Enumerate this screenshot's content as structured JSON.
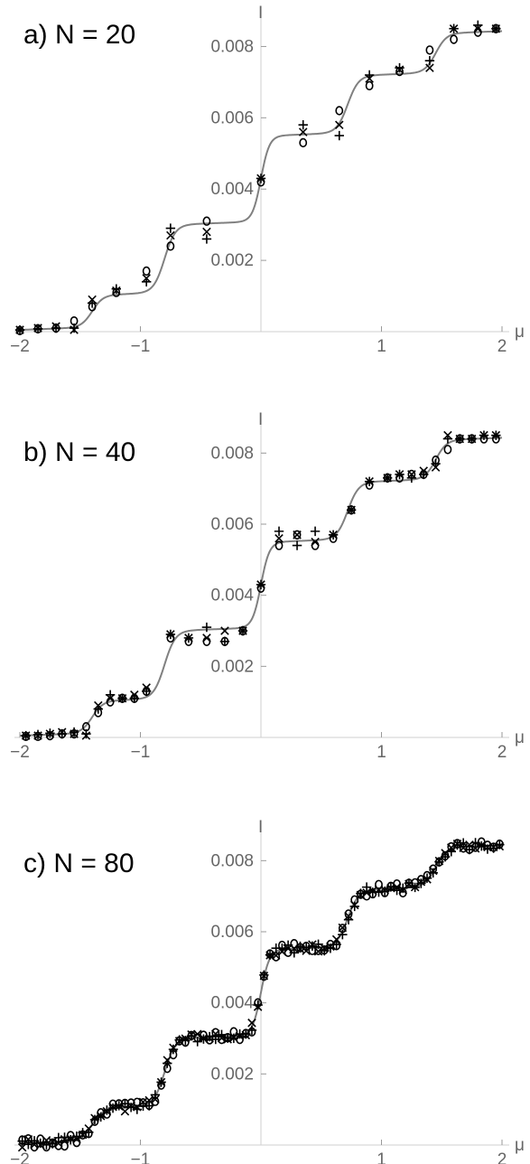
{
  "chart_data": [
    {
      "type": "line",
      "panel_label": "a) N = 20",
      "xlabel": "μ",
      "ylabel": "I",
      "xlim": [
        -2,
        2
      ],
      "ylim": [
        0,
        0.009
      ],
      "x_ticks": [
        "-2",
        "-1",
        "1",
        "2"
      ],
      "y_ticks": [
        "0.002",
        "0.004",
        "0.006",
        "0.008"
      ],
      "curve": {
        "type": "staircase",
        "step_locations": [
          -1.4,
          -0.8,
          0.0,
          0.72,
          1.45
        ],
        "step_heights": [
          0.0009,
          0.0019,
          0.0024,
          0.0016,
          0.0011
        ],
        "baseline": 5e-05,
        "slope": 0.00012
      },
      "series": [
        {
          "marker": "x",
          "x": [
            -2.0,
            -1.85,
            -1.7,
            -1.55,
            -1.4,
            -1.2,
            -0.95,
            -0.75,
            -0.45,
            0.0,
            0.35,
            0.65,
            0.9,
            1.15,
            1.4,
            1.6,
            1.8,
            1.95
          ],
          "y": [
            5e-05,
            0.0001,
            0.00015,
            5e-05,
            0.0009,
            0.00115,
            0.0015,
            0.0027,
            0.0028,
            0.0043,
            0.0056,
            0.0058,
            0.0071,
            0.00735,
            0.0074,
            0.0085,
            0.0085,
            0.0085
          ]
        },
        {
          "marker": "o",
          "x": [
            -2.0,
            -1.85,
            -1.7,
            -1.55,
            -1.4,
            -1.2,
            -0.95,
            -0.75,
            -0.45,
            0.0,
            0.35,
            0.65,
            0.9,
            1.15,
            1.4,
            1.6,
            1.8,
            1.95
          ],
          "y": [
            3e-05,
            8e-05,
            0.0001,
            0.0003,
            0.0007,
            0.0011,
            0.0017,
            0.0024,
            0.0031,
            0.0042,
            0.0053,
            0.0062,
            0.0069,
            0.0073,
            0.0079,
            0.0082,
            0.0084,
            0.0085
          ]
        },
        {
          "marker": "+",
          "x": [
            -2.0,
            -1.85,
            -1.7,
            -1.55,
            -1.4,
            -1.2,
            -0.95,
            -0.75,
            -0.45,
            0.0,
            0.35,
            0.65,
            0.9,
            1.15,
            1.4,
            1.6,
            1.8,
            1.95
          ],
          "y": [
            5e-05,
            8e-05,
            0.0001,
            0.0001,
            0.0008,
            0.0012,
            0.0014,
            0.0029,
            0.0026,
            0.0043,
            0.0058,
            0.0055,
            0.0072,
            0.0074,
            0.0076,
            0.0085,
            0.0086,
            0.0085
          ]
        }
      ]
    },
    {
      "type": "line",
      "panel_label": "b) N = 40",
      "xlabel": "μ",
      "ylabel": "I",
      "xlim": [
        -2,
        2
      ],
      "ylim": [
        0,
        0.009
      ],
      "x_ticks": [
        "-2",
        "-1",
        "1",
        "2"
      ],
      "y_ticks": [
        "0.002",
        "0.004",
        "0.006",
        "0.008"
      ],
      "curve": {
        "type": "staircase",
        "step_locations": [
          -1.4,
          -0.8,
          0.0,
          0.72,
          1.45
        ],
        "step_heights": [
          0.0009,
          0.0019,
          0.0024,
          0.0016,
          0.0011
        ],
        "baseline": 5e-05,
        "slope": 0.00012
      },
      "series": [
        {
          "marker": "x",
          "x": [
            -1.95,
            -1.85,
            -1.75,
            -1.65,
            -1.55,
            -1.45,
            -1.35,
            -1.25,
            -1.15,
            -1.05,
            -0.95,
            -0.75,
            -0.6,
            -0.45,
            -0.3,
            -0.15,
            0.0,
            0.15,
            0.3,
            0.45,
            0.6,
            0.75,
            0.9,
            1.05,
            1.15,
            1.25,
            1.35,
            1.45,
            1.55,
            1.65,
            1.75,
            1.85,
            1.95
          ],
          "y": [
            5e-05,
            5e-05,
            0.0001,
            0.00015,
            0.0001,
            5e-05,
            0.0009,
            0.0011,
            0.0011,
            0.0012,
            0.0014,
            0.0029,
            0.0028,
            0.0028,
            0.003,
            0.003,
            0.0043,
            0.0056,
            0.0057,
            0.0055,
            0.0057,
            0.0064,
            0.0072,
            0.0073,
            0.0074,
            0.0074,
            0.0075,
            0.0076,
            0.0085,
            0.0084,
            0.0084,
            0.0085,
            0.0085
          ]
        },
        {
          "marker": "o",
          "x": [
            -1.95,
            -1.85,
            -1.75,
            -1.65,
            -1.55,
            -1.45,
            -1.35,
            -1.25,
            -1.15,
            -1.05,
            -0.95,
            -0.75,
            -0.6,
            -0.45,
            -0.3,
            -0.15,
            0.0,
            0.15,
            0.3,
            0.45,
            0.6,
            0.75,
            0.9,
            1.05,
            1.15,
            1.25,
            1.35,
            1.45,
            1.55,
            1.65,
            1.75,
            1.85,
            1.95
          ],
          "y": [
            3e-05,
            3e-05,
            5e-05,
            0.0001,
            0.0001,
            0.0003,
            0.0007,
            0.001,
            0.0011,
            0.0011,
            0.0013,
            0.0028,
            0.0027,
            0.0027,
            0.0027,
            0.003,
            0.0042,
            0.0054,
            0.0057,
            0.0054,
            0.0056,
            0.0064,
            0.0071,
            0.0073,
            0.0073,
            0.0074,
            0.0074,
            0.0078,
            0.0081,
            0.0084,
            0.0084,
            0.0084,
            0.0084
          ]
        },
        {
          "marker": "+",
          "x": [
            -1.95,
            -1.85,
            -1.75,
            -1.65,
            -1.55,
            -1.45,
            -1.35,
            -1.25,
            -1.15,
            -1.05,
            -0.95,
            -0.75,
            -0.6,
            -0.45,
            -0.3,
            -0.15,
            0.0,
            0.15,
            0.3,
            0.45,
            0.6,
            0.75,
            0.9,
            1.05,
            1.15,
            1.25,
            1.35,
            1.45,
            1.55,
            1.65,
            1.75,
            1.85,
            1.95
          ],
          "y": [
            5e-05,
            8e-05,
            0.00012,
            0.0001,
            0.00015,
            0.0001,
            0.0008,
            0.0012,
            0.0011,
            0.0011,
            0.0013,
            0.0029,
            0.0028,
            0.0031,
            0.0027,
            0.003,
            0.0043,
            0.0058,
            0.0054,
            0.0058,
            0.0057,
            0.0064,
            0.0072,
            0.0073,
            0.0074,
            0.0073,
            0.0074,
            0.0077,
            0.0084,
            0.0084,
            0.0084,
            0.0085,
            0.0085
          ]
        }
      ]
    },
    {
      "type": "line",
      "panel_label": "c) N = 80",
      "xlabel": "μ",
      "ylabel": "I",
      "xlim": [
        -2,
        2
      ],
      "ylim": [
        0,
        0.009
      ],
      "x_ticks": [
        "-2",
        "-1",
        "1",
        "2"
      ],
      "y_ticks": [
        "0.002",
        "0.004",
        "0.006",
        "0.008"
      ],
      "curve": {
        "type": "staircase",
        "step_locations": [
          -1.4,
          -0.8,
          0.0,
          0.72,
          1.45
        ],
        "step_heights": [
          0.0009,
          0.0019,
          0.0024,
          0.0016,
          0.0011
        ],
        "baseline": 5e-05,
        "slope": 0.00012
      },
      "series": [
        {
          "marker": "x",
          "n": 80,
          "jitter": 0.00012,
          "x_range": [
            -1.98,
            1.98
          ]
        },
        {
          "marker": "o",
          "n": 80,
          "jitter": 0.00015,
          "x_range": [
            -1.98,
            1.98
          ]
        },
        {
          "marker": "+",
          "n": 80,
          "jitter": 0.00012,
          "x_range": [
            -1.98,
            1.98
          ]
        }
      ]
    }
  ]
}
